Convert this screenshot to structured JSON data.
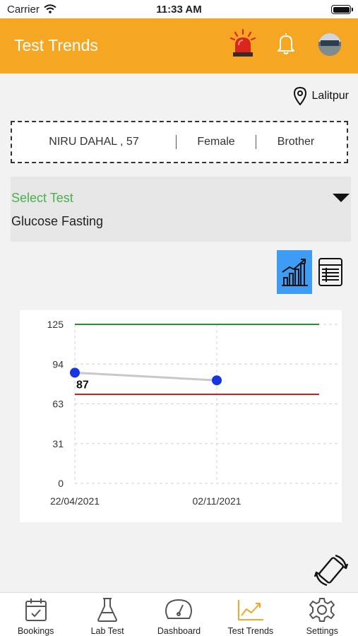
{
  "status_bar": {
    "carrier": "Carrier",
    "time": "11:33 AM"
  },
  "header": {
    "title": "Test Trends"
  },
  "location": {
    "name": "Lalitpur"
  },
  "patient": {
    "name_age": "NIRU DAHAL , 57",
    "gender": "Female",
    "relation": "Brother"
  },
  "select_test": {
    "label": "Select Test",
    "value": "Glucose Fasting"
  },
  "colors": {
    "accent": "#f5a623",
    "upper_limit": "#2e8b2e",
    "lower_limit": "#e0191f",
    "point": "#1535e6",
    "active_view": "#3f9cf5",
    "label_green": "#4caf50"
  },
  "chart_data": {
    "type": "line",
    "y_ticks": [
      "125",
      "94",
      "63",
      "31",
      "0"
    ],
    "ylim": [
      0,
      125
    ],
    "x_ticks": [
      "22/04/2021",
      "02/11/2021"
    ],
    "series": [
      {
        "values": [
          87,
          81
        ]
      }
    ],
    "reference_lines": {
      "upper": 125,
      "lower": 70
    },
    "point_label": "87",
    "grid": true
  },
  "tabs": [
    {
      "label": "Bookings",
      "icon": "calendar-check-icon"
    },
    {
      "label": "Lab Test",
      "icon": "flask-icon"
    },
    {
      "label": "Dashboard",
      "icon": "speedometer-icon"
    },
    {
      "label": "Test Trends",
      "icon": "trend-chart-icon"
    },
    {
      "label": "Settings",
      "icon": "gear-icon"
    }
  ]
}
